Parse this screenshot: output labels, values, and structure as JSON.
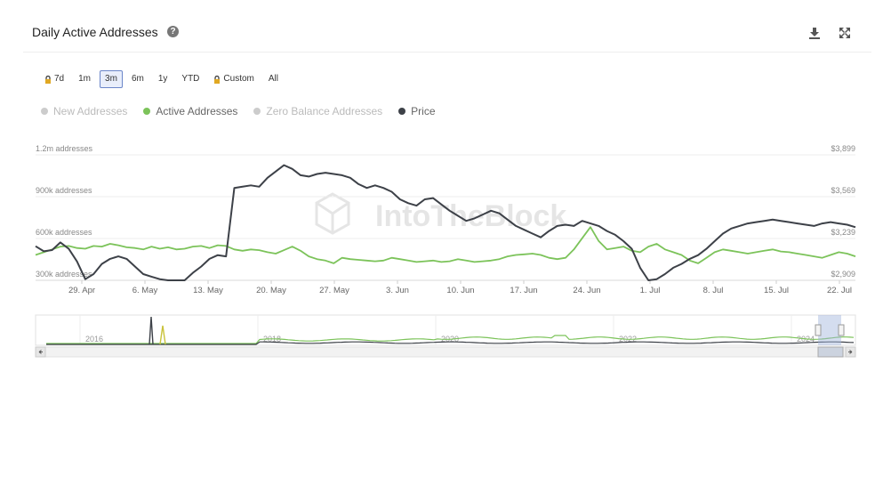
{
  "header": {
    "title": "Daily Active Addresses",
    "help_glyph": "?"
  },
  "toolbar": {
    "download_icon": "download-icon",
    "fullscreen_icon": "expand-icon"
  },
  "ranges": [
    {
      "label": "7d",
      "locked": true,
      "selected": false
    },
    {
      "label": "1m",
      "locked": false,
      "selected": false
    },
    {
      "label": "3m",
      "locked": false,
      "selected": true
    },
    {
      "label": "6m",
      "locked": false,
      "selected": false
    },
    {
      "label": "1y",
      "locked": false,
      "selected": false
    },
    {
      "label": "YTD",
      "locked": false,
      "selected": false
    },
    {
      "label": "Custom",
      "locked": true,
      "selected": false
    },
    {
      "label": "All",
      "locked": false,
      "selected": false
    }
  ],
  "legend": [
    {
      "name": "New Addresses",
      "color": "#cccccc",
      "active": false
    },
    {
      "name": "Active Addresses",
      "color": "#7cc35a",
      "active": true
    },
    {
      "name": "Zero Balance Addresses",
      "color": "#cccccc",
      "active": false
    },
    {
      "name": "Price",
      "color": "#3d4148",
      "active": true
    }
  ],
  "watermark": "IntoTheBlock",
  "chart_data": {
    "type": "line",
    "x_ticks": [
      "29. Apr",
      "6. May",
      "13. May",
      "20. May",
      "27. May",
      "3. Jun",
      "10. Jun",
      "17. Jun",
      "24. Jun",
      "1. Jul",
      "8. Jul",
      "15. Jul",
      "22. Jul"
    ],
    "left_axis": {
      "ticks": [
        "300k addresses",
        "600k addresses",
        "900k addresses",
        "1.2m addresses"
      ],
      "tick_values": [
        300000,
        600000,
        900000,
        1200000
      ],
      "range": [
        300000,
        1200000
      ]
    },
    "right_axis": {
      "ticks": [
        "$2,909",
        "$3,239",
        "$3,569",
        "$3,899"
      ],
      "tick_values": [
        2909,
        3239,
        3569,
        3899
      ],
      "range": [
        2909,
        3899
      ]
    },
    "series": [
      {
        "name": "Active Addresses",
        "axis": "left",
        "color": "#7cc35a",
        "values": [
          520000,
          540000,
          560000,
          580000,
          585000,
          570000,
          565000,
          585000,
          580000,
          600000,
          590000,
          575000,
          570000,
          560000,
          580000,
          565000,
          575000,
          560000,
          565000,
          580000,
          585000,
          570000,
          590000,
          585000,
          560000,
          550000,
          560000,
          555000,
          540000,
          530000,
          555000,
          580000,
          550000,
          510000,
          490000,
          480000,
          460000,
          500000,
          490000,
          485000,
          480000,
          475000,
          480000,
          500000,
          490000,
          480000,
          470000,
          475000,
          480000,
          470000,
          475000,
          490000,
          480000,
          470000,
          475000,
          480000,
          490000,
          510000,
          520000,
          525000,
          530000,
          520000,
          500000,
          490000,
          500000,
          560000,
          640000,
          720000,
          620000,
          560000,
          570000,
          580000,
          550000,
          540000,
          580000,
          600000,
          560000,
          540000,
          520000,
          480000,
          460000,
          500000,
          540000,
          560000,
          550000,
          540000,
          530000,
          540000,
          550000,
          560000,
          545000,
          540000,
          530000,
          520000,
          510000,
          500000,
          520000,
          540000,
          530000,
          510000
        ]
      },
      {
        "name": "Price",
        "axis": "right",
        "color": "#3d4148",
        "values": [
          3220,
          3180,
          3190,
          3250,
          3200,
          3100,
          2960,
          3000,
          3080,
          3120,
          3140,
          3120,
          3060,
          3000,
          2980,
          2960,
          2940,
          2920,
          2940,
          3010,
          3060,
          3120,
          3150,
          3140,
          3680,
          3690,
          3700,
          3690,
          3760,
          3810,
          3860,
          3830,
          3780,
          3770,
          3790,
          3800,
          3790,
          3780,
          3760,
          3710,
          3680,
          3700,
          3680,
          3650,
          3590,
          3560,
          3540,
          3590,
          3600,
          3550,
          3500,
          3460,
          3420,
          3440,
          3470,
          3500,
          3480,
          3430,
          3380,
          3350,
          3320,
          3290,
          3340,
          3380,
          3390,
          3380,
          3420,
          3400,
          3380,
          3340,
          3310,
          3260,
          3200,
          3050,
          2930,
          2960,
          3000,
          3050,
          3080,
          3120,
          3150,
          3200,
          3260,
          3320,
          3360,
          3380,
          3400,
          3410,
          3420,
          3430,
          3420,
          3410,
          3400,
          3390,
          3380,
          3400,
          3410,
          3400,
          3390,
          3370
        ]
      }
    ],
    "navigator": {
      "year_labels": [
        "2016",
        "2018",
        "2020",
        "2022",
        "2024"
      ]
    },
    "grid": true
  }
}
